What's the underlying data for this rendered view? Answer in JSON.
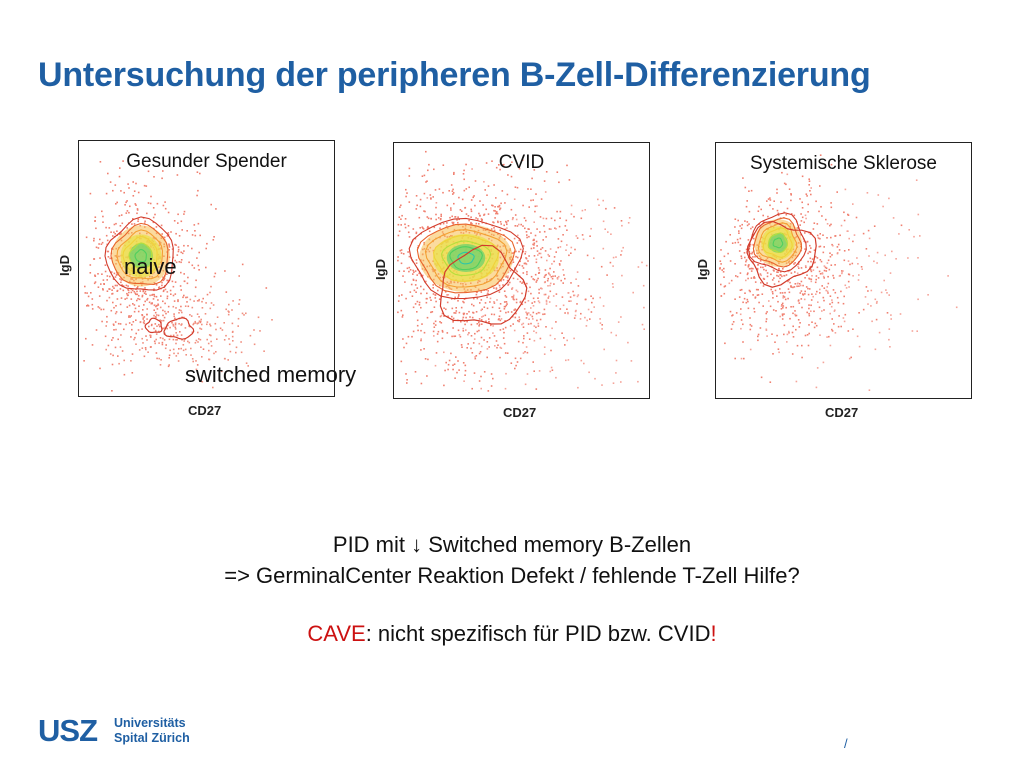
{
  "slide": {
    "title": "Untersuchung der peripheren B-Zell-Differenzierung",
    "page_marker": "/"
  },
  "panels": [
    {
      "title": "Gesunder Spender",
      "y_axis": "IgD",
      "x_axis": "CD27"
    },
    {
      "title": "CVID",
      "y_axis": "IgD",
      "x_axis": "CD27"
    },
    {
      "title": "Systemische Sklerose",
      "y_axis": "IgD",
      "x_axis": "CD27"
    }
  ],
  "annotations": {
    "naive": "naive",
    "switched_memory": "switched memory"
  },
  "caption": {
    "line1": "PID mit ↓ Switched memory B-Zellen",
    "line2": "=> GerminalCenter Reaktion Defekt / fehlende T-Zell Hilfe?",
    "cave_word": "CAVE",
    "cave_rest": ": nicht spezifisch für PID bzw. CVID",
    "cave_end": "!"
  },
  "logo": {
    "mark": "USZ",
    "line1": "Universitäts",
    "line2": "Spital Zürich"
  },
  "colors": {
    "brand_blue": "#1f5fa3",
    "warning_red": "#cc1111"
  }
}
